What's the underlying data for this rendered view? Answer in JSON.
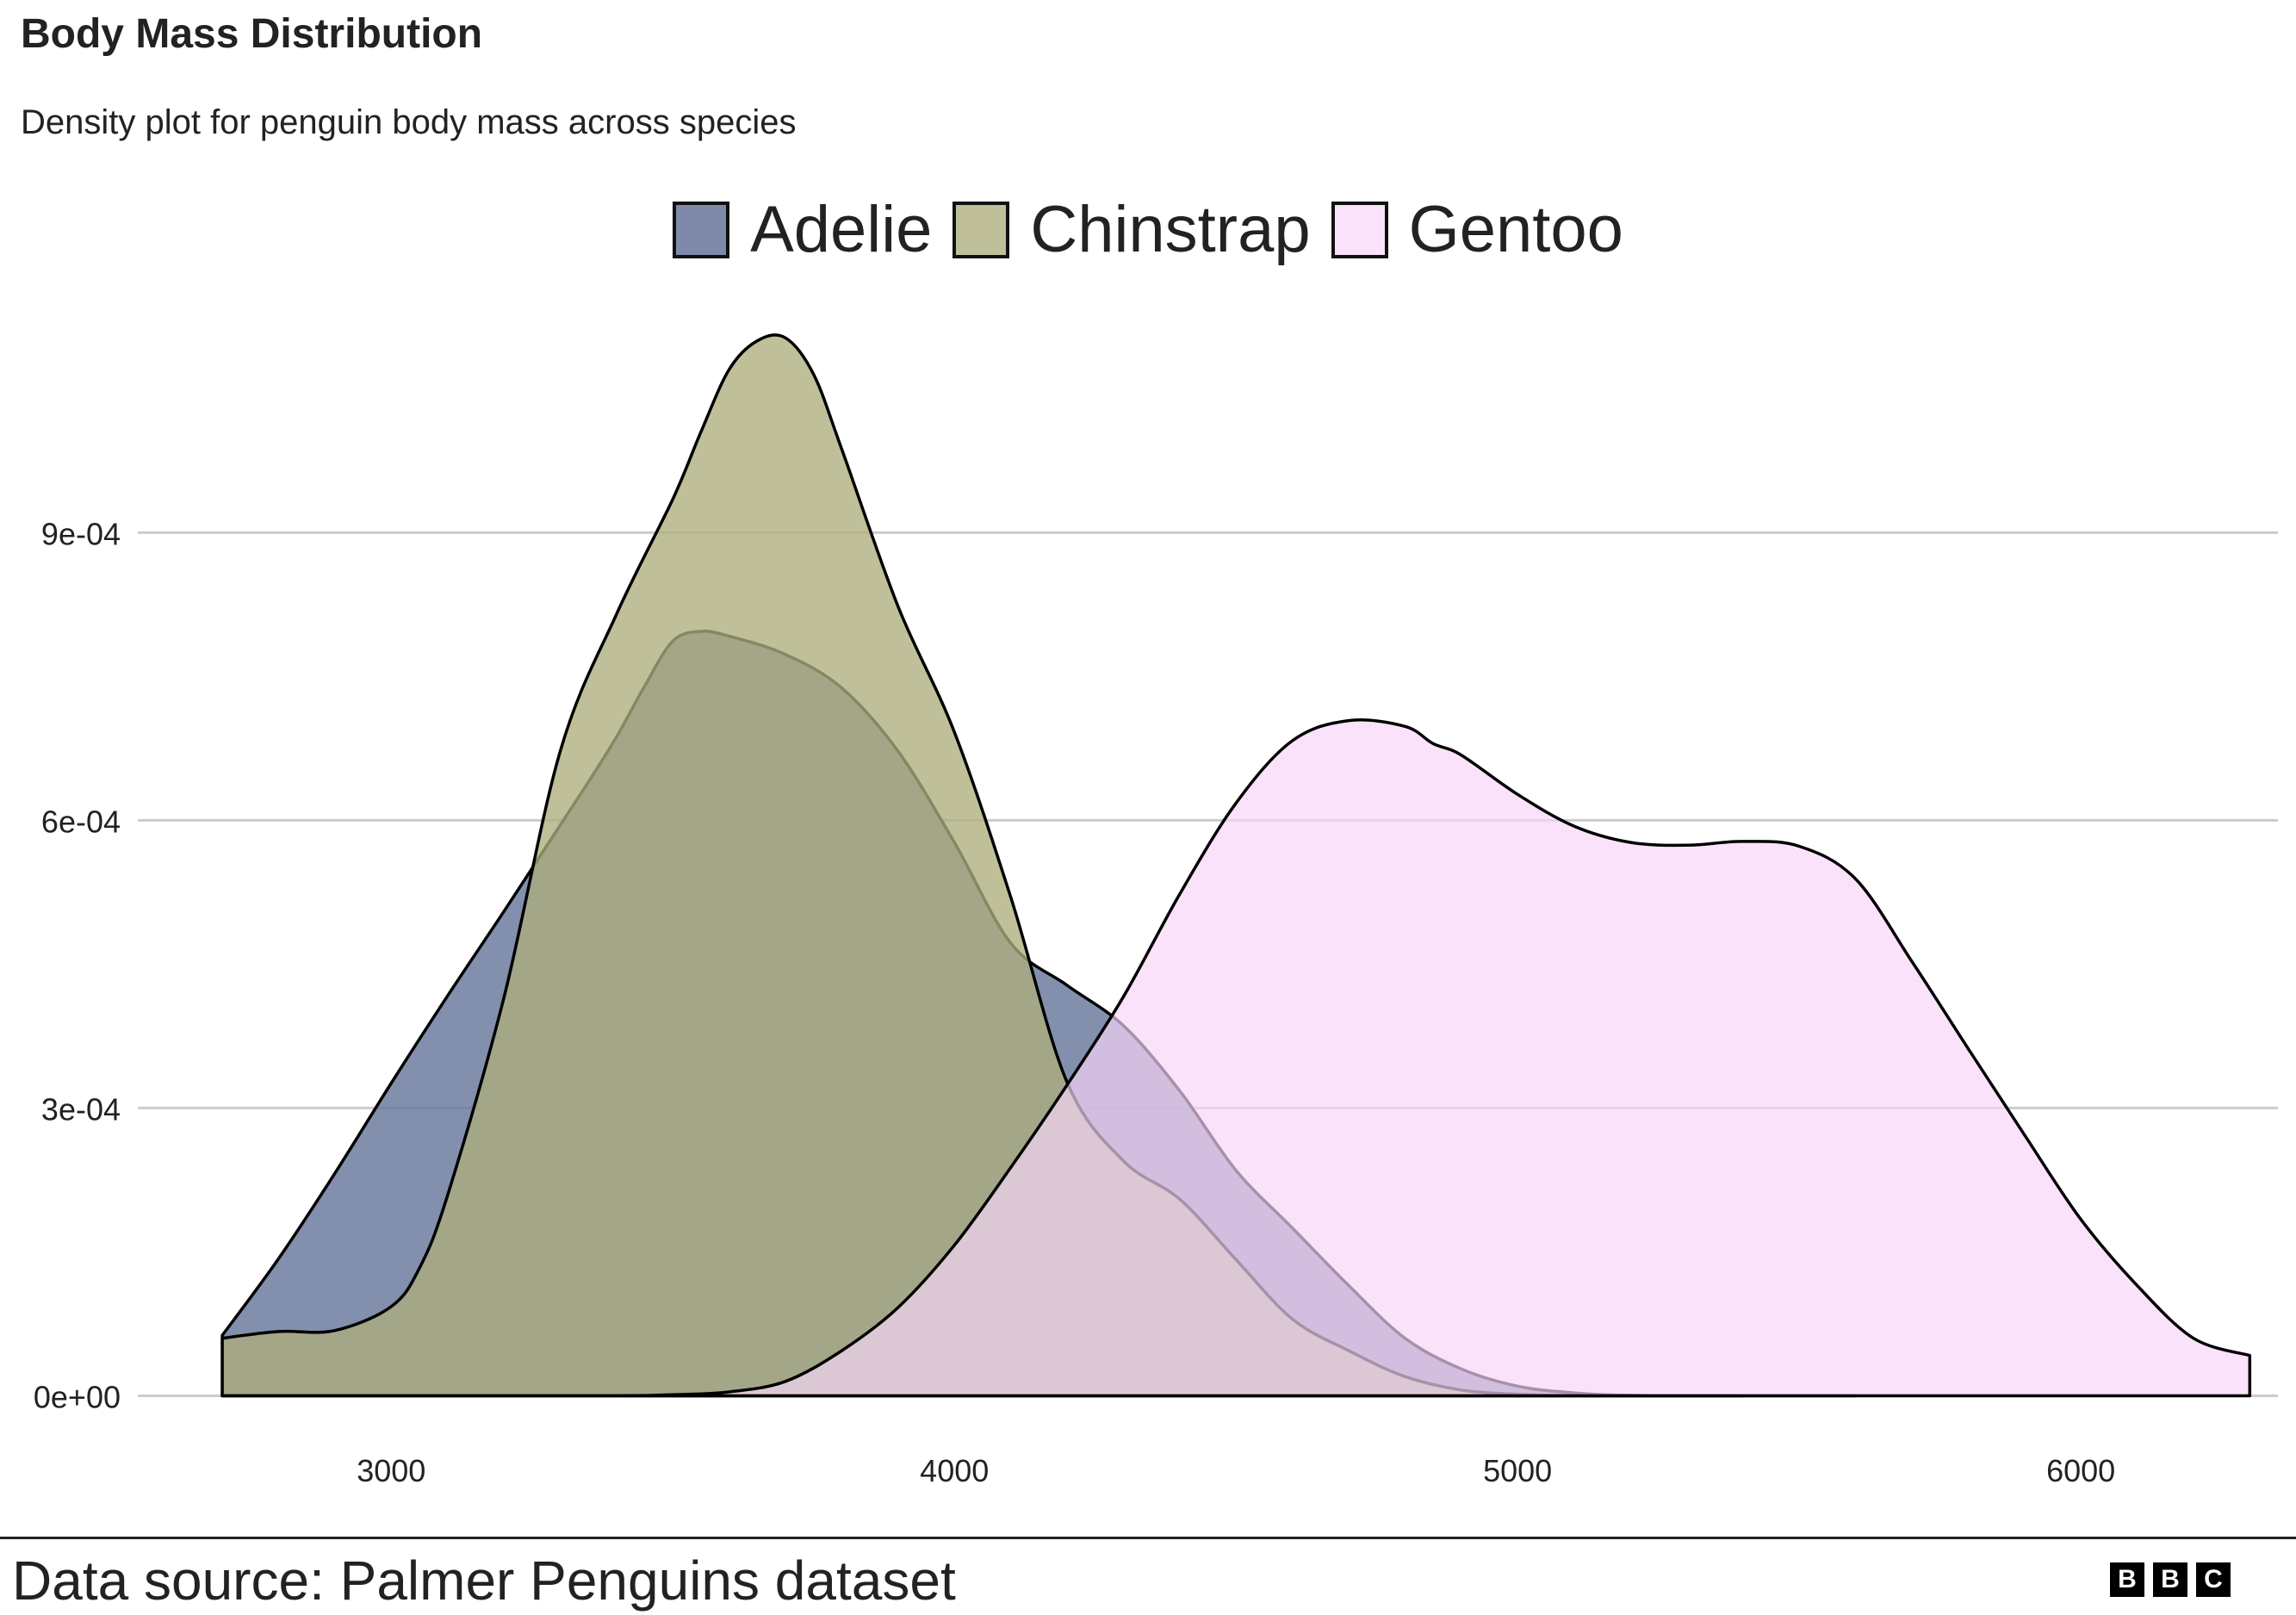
{
  "header": {
    "title": "Body Mass Distribution",
    "subtitle": "Density plot for penguin body mass across species"
  },
  "legend": {
    "items": [
      {
        "label": "Adelie",
        "color": "#7f8aab"
      },
      {
        "label": "Chinstrap",
        "color": "#bfc09a"
      },
      {
        "label": "Gentoo",
        "color": "#fae3fa"
      }
    ]
  },
  "footer": {
    "source": "Data source: Palmer Penguins dataset",
    "logo_letters": [
      "B",
      "B",
      "C"
    ]
  },
  "chart_data": {
    "type": "area",
    "title": "Body Mass Distribution",
    "subtitle": "Density plot for penguin body mass across species",
    "xlabel": "",
    "ylabel": "",
    "xlim": [
      2550,
      6350
    ],
    "ylim": [
      -4e-05,
      0.00115
    ],
    "x_ticks": [
      3000,
      4000,
      5000,
      6000
    ],
    "x_tick_labels": [
      "3000",
      "4000",
      "5000",
      "6000"
    ],
    "y_ticks": [
      0,
      0.0003,
      0.0006,
      0.0009
    ],
    "y_tick_labels": [
      "0e+00",
      "3e-04",
      "6e-04",
      "9e-04"
    ],
    "grid": "horizontal",
    "legend_position": "top",
    "series": [
      {
        "name": "Adelie",
        "fill": "#67769b",
        "opacity": 0.82,
        "x": [
          2700,
          2800,
          2900,
          3000,
          3100,
          3200,
          3300,
          3350,
          3400,
          3450,
          3500,
          3550,
          3600,
          3700,
          3800,
          3900,
          4000,
          4100,
          4200,
          4300,
          4400,
          4500,
          4600,
          4700,
          4800,
          4900,
          5000,
          5100,
          5200,
          5400,
          5600
        ],
        "y": [
          6.3e-05,
          0.000143,
          0.000232,
          0.000326,
          0.000417,
          0.000505,
          0.000595,
          0.00064,
          0.000687,
          0.00074,
          0.000787,
          0.000797,
          0.000792,
          0.000773,
          0.000738,
          0.000672,
          0.000577,
          0.000472,
          0.000428,
          0.000386,
          0.000318,
          0.000235,
          0.000175,
          0.000115,
          6e-05,
          2.8e-05,
          1e-05,
          3e-06,
          5e-07,
          0.0,
          0.0
        ]
      },
      {
        "name": "Chinstrap",
        "fill": "#adae7e",
        "opacity": 0.78,
        "x": [
          2700,
          2800,
          2900,
          3000,
          3050,
          3100,
          3200,
          3300,
          3400,
          3500,
          3550,
          3600,
          3650,
          3700,
          3750,
          3800,
          3900,
          4000,
          4100,
          4200,
          4300,
          4400,
          4500,
          4600,
          4700,
          4800,
          4900,
          5000,
          5100,
          5200,
          5400
        ],
        "y": [
          6e-05,
          6.7e-05,
          6.8e-05,
          9.3e-05,
          0.000133,
          0.000209,
          0.000415,
          0.000672,
          0.000815,
          0.000935,
          0.001005,
          0.00107,
          0.0011,
          0.001103,
          0.001065,
          0.000987,
          0.000823,
          0.000692,
          0.00052,
          0.000327,
          0.000245,
          0.000205,
          0.000142,
          8e-05,
          4.7e-05,
          2e-05,
          6e-06,
          1.5e-06,
          3e-07,
          0.0,
          0.0
        ]
      },
      {
        "name": "Gentoo",
        "fill": "#f8d6f8",
        "opacity": 0.68,
        "x": [
          2700,
          3000,
          3200,
          3400,
          3500,
          3600,
          3700,
          3800,
          3900,
          4000,
          4100,
          4200,
          4300,
          4400,
          4500,
          4600,
          4700,
          4800,
          4850,
          4900,
          5000,
          5100,
          5200,
          5300,
          5400,
          5500,
          5600,
          5700,
          5800,
          5900,
          6000,
          6100,
          6200,
          6300
        ],
        "y": [
          0.0,
          0.0,
          0.0,
          0.0,
          1e-06,
          4e-06,
          1.5e-05,
          4.7e-05,
          9.2e-05,
          0.000157,
          0.000238,
          0.000324,
          0.000416,
          0.000523,
          0.000618,
          0.000683,
          0.000704,
          0.000698,
          0.00068,
          0.000668,
          0.000627,
          0.000594,
          0.000577,
          0.000574,
          0.000578,
          0.000573,
          0.000539,
          0.000453,
          0.000362,
          0.000272,
          0.000184,
          0.000115,
          6e-05,
          4.2e-05
        ]
      }
    ]
  }
}
